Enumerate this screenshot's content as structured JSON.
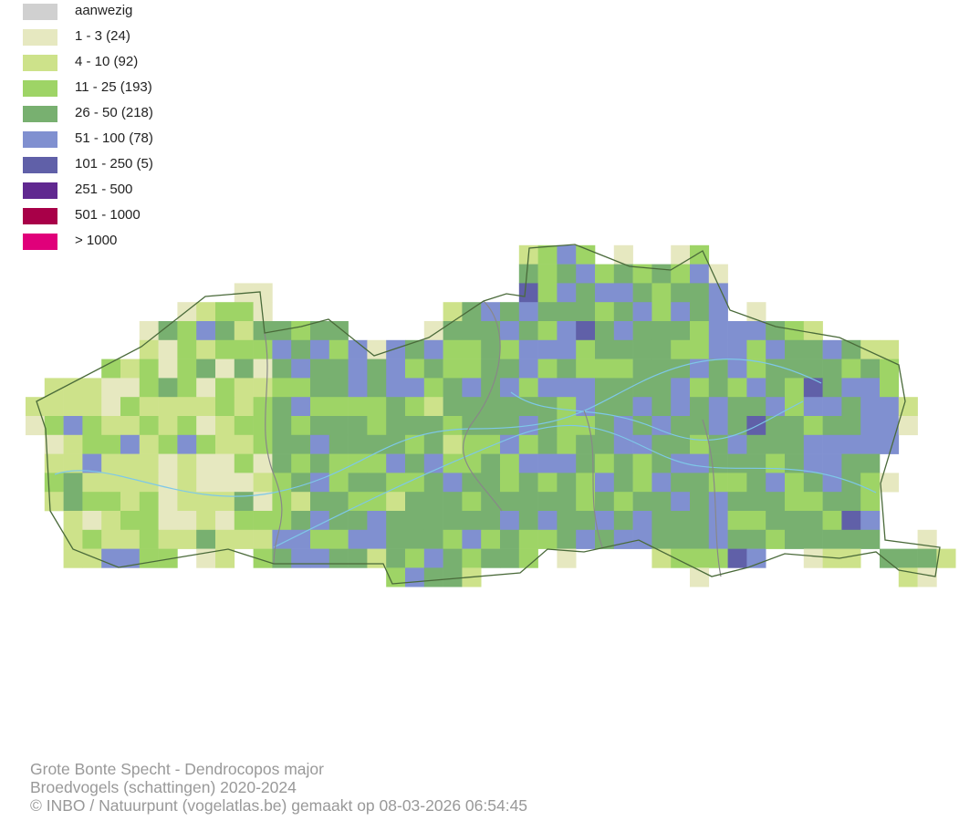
{
  "legend": [
    {
      "label": "aanwezig",
      "color": "#d0d0d0"
    },
    {
      "label": "1 - 3 (24)",
      "color": "#e6e8c0"
    },
    {
      "label": "4 - 10 (92)",
      "color": "#cde28a"
    },
    {
      "label": "11 - 25 (193)",
      "color": "#9ed466"
    },
    {
      "label": "26 - 50 (218)",
      "color": "#78b070"
    },
    {
      "label": "51 - 100 (78)",
      "color": "#8090d0"
    },
    {
      "label": "101 - 250 (5)",
      "color": "#6060a8"
    },
    {
      "label": "251 - 500",
      "color": "#602890"
    },
    {
      "label": "501 - 1000",
      "color": "#a80048"
    },
    {
      "label": "> 1000",
      "color": "#e0007a"
    }
  ],
  "map": {
    "border_color": "#4a6a3a",
    "province_border_color": "#888888",
    "river_color": "#7ec8e8"
  },
  "footer": {
    "line1": "Grote Bonte Specht - Dendrocopos major",
    "line2": "Broedvogels (schattingen) 2020-2024",
    "line3": "© INBO / Natuurpunt (vogelatlas.be) gemaakt op 08-03-2026 06:54:45"
  }
}
